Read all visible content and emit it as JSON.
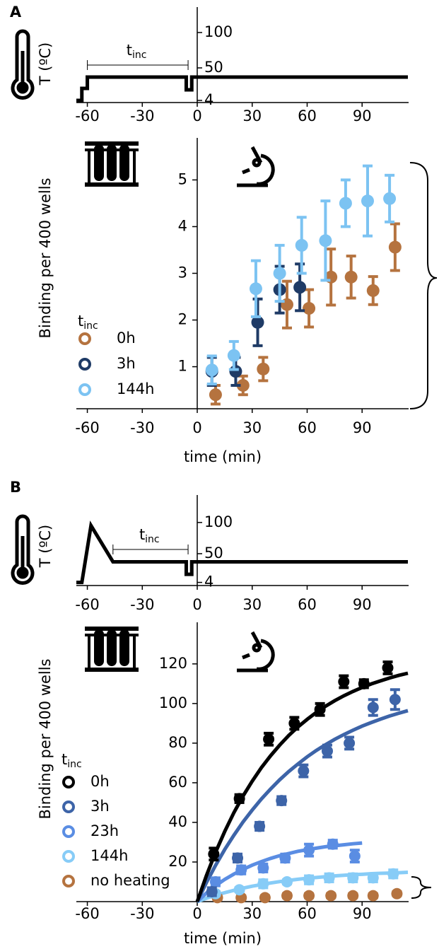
{
  "chart_data": [
    {
      "type": "line",
      "panel_label": "A",
      "ylabel": "T (ºC)",
      "color": "#000000",
      "x": [
        -66,
        -63,
        -63,
        -60,
        -60,
        -6,
        -6,
        -3,
        -3,
        115
      ],
      "values": [
        4,
        4,
        21,
        21,
        37,
        37,
        19,
        19,
        37,
        37
      ],
      "xlim": [
        -66,
        115
      ],
      "ylim": [
        1,
        136
      ],
      "xticks": [
        -60,
        -30,
        0,
        30,
        60,
        90
      ],
      "yticks": [
        4,
        50,
        100
      ],
      "annotation": {
        "base": "t",
        "sub": "inc",
        "x_range": [
          -60,
          -5
        ]
      }
    },
    {
      "type": "scatter",
      "xlabel": "time (min)",
      "ylabel": "Binding per 400 wells",
      "legend_title": {
        "base": "t",
        "sub": "inc"
      },
      "xlim": [
        -66,
        115
      ],
      "ylim": [
        0.1,
        5.9
      ],
      "xticks": [
        -60,
        -30,
        0,
        30,
        60,
        90
      ],
      "yticks": [
        1,
        2,
        3,
        4,
        5
      ],
      "series": [
        {
          "name": "0h",
          "color": "#b5733f",
          "x": [
            10,
            25,
            36,
            49,
            61,
            73,
            84,
            96,
            108
          ],
          "values": [
            0.4,
            0.6,
            0.95,
            2.33,
            2.25,
            2.92,
            2.92,
            2.63,
            3.56
          ],
          "errors": [
            0.2,
            0.2,
            0.25,
            0.5,
            0.4,
            0.6,
            0.45,
            0.3,
            0.5
          ]
        },
        {
          "name": "3h",
          "color": "#1f3b66",
          "x": [
            8,
            21,
            33,
            45,
            56
          ],
          "values": [
            0.9,
            0.9,
            1.95,
            2.65,
            2.7
          ],
          "errors": [
            0.3,
            0.3,
            0.5,
            0.5,
            0.5
          ]
        },
        {
          "name": "144h",
          "color": "#7cc3f2",
          "x": [
            8,
            20,
            32,
            45,
            57,
            70,
            81,
            93,
            105
          ],
          "values": [
            0.93,
            1.24,
            2.67,
            3.0,
            3.6,
            3.7,
            4.5,
            4.55,
            4.6
          ],
          "errors": [
            0.3,
            0.3,
            0.6,
            0.6,
            0.6,
            0.85,
            0.5,
            0.75,
            0.5
          ]
        }
      ]
    },
    {
      "type": "line",
      "panel_label": "B",
      "ylabel": "T (ºC)",
      "color": "#000000",
      "x": [
        -66,
        -63,
        -58,
        -46,
        -6,
        -6,
        -3,
        -3,
        115
      ],
      "values": [
        4,
        4,
        95,
        37,
        37,
        17,
        17,
        37,
        37
      ],
      "xlim": [
        -66,
        115
      ],
      "ylim": [
        -1,
        144
      ],
      "xticks": [
        -60,
        -30,
        0,
        30,
        60,
        90
      ],
      "yticks": [
        4,
        50,
        100
      ],
      "annotation": {
        "base": "t",
        "sub": "inc",
        "x_range": [
          -46,
          -5
        ]
      }
    },
    {
      "type": "scatter",
      "xlabel": "time (min)",
      "ylabel": "Binding per 400 wells",
      "legend_title": {
        "base": "t",
        "sub": "inc"
      },
      "xlim": [
        -66,
        115
      ],
      "ylim": [
        0,
        141
      ],
      "xticks": [
        -60,
        -30,
        0,
        30,
        60,
        90
      ],
      "yticks": [
        20,
        40,
        60,
        80,
        100,
        120
      ],
      "series": [
        {
          "name": "0h",
          "color": "#000000",
          "x": [
            9,
            23,
            39,
            53,
            67,
            80,
            91,
            104
          ],
          "values": [
            24,
            52,
            82,
            90,
            97,
            111,
            110,
            118
          ],
          "errors": [
            3,
            2,
            3,
            3,
            3,
            3,
            2,
            3
          ],
          "fit": {
            "x": [
              0,
              5,
              10,
              15,
              20,
              25,
              30,
              35,
              40,
              45,
              50,
              55,
              60,
              65,
              70,
              75,
              80,
              85,
              90,
              95,
              100,
              105,
              110,
              115
            ],
            "values": [
              0,
              13.1,
              24.9,
              35.4,
              44.9,
              53.3,
              60.8,
              67.6,
              73.6,
              79.0,
              83.9,
              88.2,
              92.0,
              95.5,
              98.6,
              101.4,
              103.9,
              106.1,
              108.1,
              109.9,
              111.4,
              112.9,
              114.2,
              115.3
            ]
          }
        },
        {
          "name": "3h",
          "color": "#3d64a8",
          "x": [
            8,
            22,
            34,
            46,
            58,
            71,
            83,
            96,
            108
          ],
          "values": [
            5,
            22,
            38,
            51,
            66,
            76,
            80,
            98,
            102
          ],
          "errors": [
            2,
            2,
            2,
            2,
            3,
            3,
            3,
            4,
            5
          ],
          "fit": {
            "x": [
              0,
              5,
              10,
              15,
              20,
              25,
              30,
              35,
              40,
              45,
              50,
              55,
              60,
              65,
              70,
              75,
              80,
              85,
              90,
              95,
              100,
              105,
              110,
              115
            ],
            "values": [
              0,
              9.6,
              18.3,
              26.3,
              33.5,
              40.2,
              46.2,
              51.8,
              56.8,
              61.5,
              65.7,
              69.5,
              73.1,
              76.3,
              79.2,
              81.9,
              84.3,
              86.5,
              88.6,
              90.4,
              92.1,
              93.7,
              95.1,
              96.4
            ]
          }
        },
        {
          "name": "23h",
          "color": "#5a8de3",
          "x": [
            10,
            24,
            36,
            48,
            61,
            74,
            86
          ],
          "values": [
            10,
            16,
            17,
            22,
            26,
            29,
            23
          ],
          "errors": [
            2,
            2,
            2,
            2,
            3,
            2,
            3
          ],
          "fit": {
            "x": [
              0,
              5,
              10,
              15,
              20,
              25,
              30,
              35,
              40,
              45,
              50,
              55,
              60,
              65,
              70,
              75,
              80,
              85,
              90
            ],
            "values": [
              0,
              4.3,
              8.0,
              11.2,
              13.9,
              16.3,
              18.4,
              20.2,
              21.8,
              23.2,
              24.3,
              25.4,
              26.2,
              27.0,
              27.7,
              28.2,
              28.7,
              29.2,
              29.6
            ]
          }
        },
        {
          "name": "144h",
          "color": "#87ccf7",
          "x": [
            10,
            23,
            36,
            49,
            61,
            72,
            85,
            96,
            107
          ],
          "values": [
            4,
            6,
            9,
            10,
            11,
            12,
            12,
            12,
            14
          ],
          "errors": [
            1,
            1,
            2,
            1,
            2,
            2,
            2,
            2,
            2
          ],
          "fit": {
            "x": [
              0,
              5,
              10,
              15,
              20,
              25,
              30,
              35,
              40,
              45,
              50,
              55,
              60,
              65,
              70,
              75,
              80,
              85,
              90,
              95,
              100,
              105,
              110,
              115
            ],
            "values": [
              0,
              1.7,
              3.2,
              4.5,
              5.7,
              6.8,
              7.8,
              8.6,
              9.4,
              10.1,
              10.7,
              11.3,
              11.8,
              12.2,
              12.6,
              13.0,
              13.3,
              13.6,
              13.8,
              14.1,
              14.3,
              14.4,
              14.6,
              14.8
            ]
          }
        },
        {
          "name": "no heating",
          "color": "#b5733f",
          "x": [
            11,
            24,
            37,
            49,
            61,
            73,
            85,
            96,
            109
          ],
          "values": [
            2,
            2,
            2,
            3,
            3,
            3,
            3,
            3,
            4
          ],
          "errors": [
            1,
            1,
            1,
            1,
            1,
            1,
            1,
            1,
            1
          ]
        }
      ]
    }
  ]
}
